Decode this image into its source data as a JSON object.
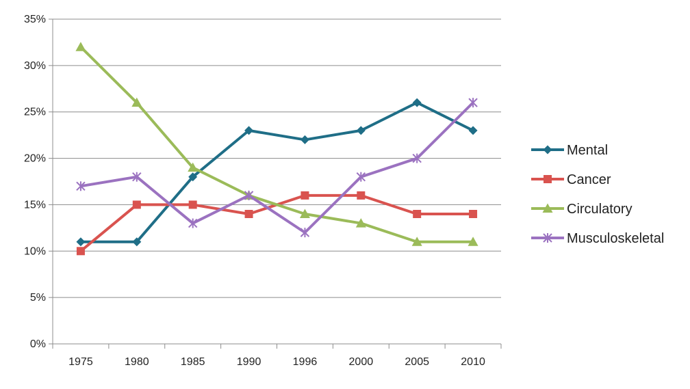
{
  "chart_data": {
    "type": "line",
    "title": "",
    "xlabel": "",
    "ylabel": "",
    "categories": [
      "1975",
      "1980",
      "1985",
      "1990",
      "1996",
      "2000",
      "2005",
      "2010"
    ],
    "ylim": [
      0,
      35
    ],
    "y_ticks": [
      0,
      5,
      10,
      15,
      20,
      25,
      30,
      35
    ],
    "y_tick_labels": [
      "0%",
      "5%",
      "10%",
      "15%",
      "20%",
      "25%",
      "30%",
      "35%"
    ],
    "grid": "horizontal",
    "legend_position": "right",
    "series": [
      {
        "name": "Mental",
        "color": "#1f6e87",
        "marker": "diamond",
        "values": [
          11,
          11,
          18,
          23,
          22,
          23,
          26,
          23
        ]
      },
      {
        "name": "Cancer",
        "color": "#d9534f",
        "marker": "square",
        "values": [
          10,
          15,
          15,
          14,
          16,
          16,
          14,
          14
        ]
      },
      {
        "name": "Circulatory",
        "color": "#9bbb59",
        "marker": "triangle",
        "values": [
          32,
          26,
          19,
          16,
          14,
          13,
          11,
          11
        ]
      },
      {
        "name": "Musculoskeletal",
        "color": "#9b72c0",
        "marker": "star",
        "values": [
          17,
          18,
          13,
          16,
          12,
          18,
          20,
          26
        ]
      }
    ]
  }
}
